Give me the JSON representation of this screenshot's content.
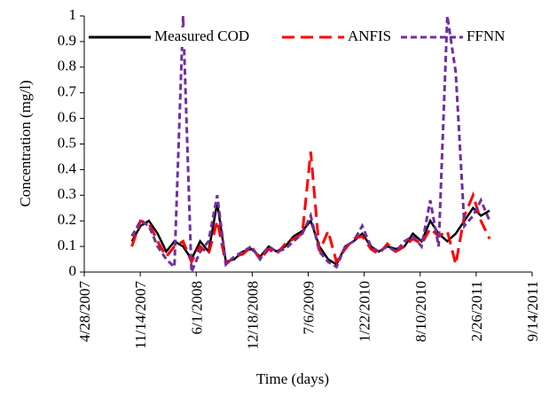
{
  "chart_data": {
    "type": "line",
    "x_label": "Time (days)",
    "y_label": "Concentration (mg/l)",
    "x": [
      "10/15/2007",
      "11/15/2007",
      "12/15/2007",
      "1/15/2008",
      "2/15/2008",
      "3/15/2008",
      "4/15/2008",
      "5/15/2008",
      "6/15/2008",
      "7/15/2008",
      "8/15/2008",
      "9/15/2008",
      "10/15/2008",
      "11/15/2008",
      "12/15/2008",
      "1/15/2009",
      "2/15/2009",
      "3/15/2009",
      "4/15/2009",
      "5/15/2009",
      "6/15/2009",
      "7/15/2009",
      "8/15/2009",
      "9/15/2009",
      "10/15/2009",
      "11/15/2009",
      "12/15/2009",
      "1/15/2010",
      "2/15/2010",
      "3/15/2010",
      "4/15/2010",
      "5/15/2010",
      "6/15/2010",
      "7/15/2010",
      "8/15/2010",
      "9/15/2010",
      "10/15/2010",
      "11/15/2010",
      "12/15/2010",
      "1/15/2011",
      "2/15/2011",
      "3/15/2011",
      "4/15/2011"
    ],
    "series": [
      {
        "name": "Measured COD",
        "color": "#000000",
        "style": "solid",
        "values": [
          0.12,
          0.18,
          0.2,
          0.15,
          0.08,
          0.12,
          0.1,
          0.05,
          0.12,
          0.08,
          0.27,
          0.04,
          0.05,
          0.08,
          0.09,
          0.06,
          0.1,
          0.08,
          0.1,
          0.14,
          0.16,
          0.2,
          0.1,
          0.05,
          0.03,
          0.1,
          0.12,
          0.15,
          0.1,
          0.08,
          0.1,
          0.09,
          0.1,
          0.15,
          0.12,
          0.2,
          0.15,
          0.12,
          0.15,
          0.2,
          0.25,
          0.22,
          0.24
        ]
      },
      {
        "name": "ANFIS",
        "color": "#ff0000",
        "style": "long-dash",
        "values": [
          0.1,
          0.2,
          0.19,
          0.12,
          0.06,
          0.1,
          0.12,
          0.04,
          0.1,
          0.07,
          0.2,
          0.03,
          0.06,
          0.07,
          0.1,
          0.05,
          0.09,
          0.07,
          0.11,
          0.13,
          0.15,
          0.47,
          0.08,
          0.16,
          0.04,
          0.09,
          0.13,
          0.14,
          0.09,
          0.07,
          0.11,
          0.08,
          0.1,
          0.13,
          0.11,
          0.17,
          0.14,
          0.16,
          0.03,
          0.22,
          0.3,
          0.2,
          0.13
        ]
      },
      {
        "name": "FFNN",
        "color": "#7030a0",
        "style": "dash",
        "values": [
          0.14,
          0.2,
          0.18,
          0.1,
          0.05,
          0.02,
          1,
          0,
          0.08,
          0.12,
          0.3,
          0.03,
          0.06,
          0.08,
          0.1,
          0.05,
          0.1,
          0.08,
          0.09,
          0.12,
          0.15,
          0.22,
          0.08,
          0.04,
          0.02,
          0.1,
          0.12,
          0.18,
          0.1,
          0.08,
          0.1,
          0.08,
          0.12,
          0.14,
          0.1,
          0.28,
          0.1,
          1,
          0.78,
          0.18,
          0.22,
          0.28,
          0.2
        ]
      }
    ],
    "xlim": [
      "4/28/2007",
      "9/14/2011"
    ],
    "xticks": [
      "4/28/2007",
      "11/14/2007",
      "6/1/2008",
      "12/18/2008",
      "7/6/2009",
      "1/22/2010",
      "8/10/2010",
      "2/26/2011",
      "9/14/2011"
    ],
    "ylim": [
      0,
      1
    ],
    "yticks": [
      0,
      0.1,
      0.2,
      0.3,
      0.4,
      0.5,
      0.6,
      0.7,
      0.8,
      0.9,
      1
    ],
    "grid": false,
    "legend": "top"
  }
}
